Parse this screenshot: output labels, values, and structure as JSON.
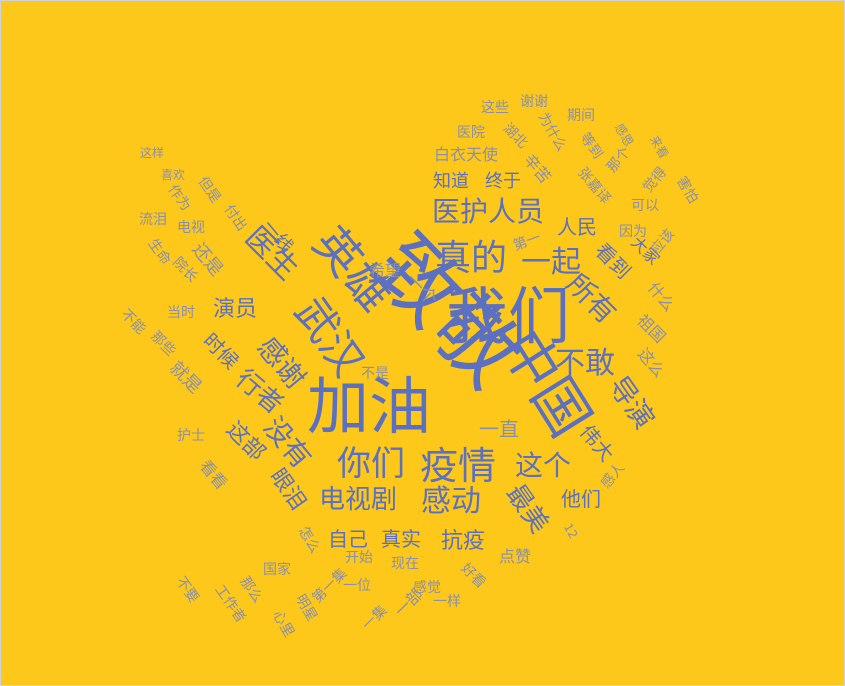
{
  "background_color": "#fec81a",
  "text_colors": {
    "dark": "#5b70c0",
    "light": "#8a8faa"
  },
  "words": [
    {
      "text": "致敬"
    },
    {
      "text": "我们"
    },
    {
      "text": "中国"
    },
    {
      "text": "加油"
    },
    {
      "text": "英雄"
    },
    {
      "text": "武汉"
    },
    {
      "text": "真的"
    },
    {
      "text": "疫情"
    },
    {
      "text": "医生"
    },
    {
      "text": "医护人员"
    },
    {
      "text": "你们"
    },
    {
      "text": "感动"
    },
    {
      "text": "电视剧"
    },
    {
      "text": "一起"
    },
    {
      "text": "所有"
    },
    {
      "text": "不敢"
    },
    {
      "text": "这个"
    },
    {
      "text": "导演"
    },
    {
      "text": "没有"
    },
    {
      "text": "感谢"
    },
    {
      "text": "行者"
    },
    {
      "text": "演员"
    },
    {
      "text": "最美"
    },
    {
      "text": "抗疫"
    },
    {
      "text": "自己"
    },
    {
      "text": "真实"
    },
    {
      "text": "知道"
    },
    {
      "text": "终于"
    },
    {
      "text": "人民"
    },
    {
      "text": "看到"
    },
    {
      "text": "伟大"
    },
    {
      "text": "他们"
    },
    {
      "text": "眼泪"
    },
    {
      "text": "这部"
    },
    {
      "text": "时候"
    },
    {
      "text": "一线"
    },
    {
      "text": "一直"
    },
    {
      "text": "一个"
    },
    {
      "text": "大家"
    },
    {
      "text": "白衣天使"
    },
    {
      "text": "辛苦"
    },
    {
      "text": "张嘉译"
    },
    {
      "text": "希望"
    },
    {
      "text": "还是"
    },
    {
      "text": "什么"
    },
    {
      "text": "祖国"
    },
    {
      "text": "这么"
    },
    {
      "text": "就是"
    },
    {
      "text": "看看"
    },
    {
      "text": "第一"
    },
    {
      "text": "点赞"
    },
    {
      "text": "一部"
    },
    {
      "text": "湖北"
    },
    {
      "text": "这些"
    },
    {
      "text": "谢谢"
    },
    {
      "text": "期间"
    },
    {
      "text": "医院"
    },
    {
      "text": "为什么"
    },
    {
      "text": "等到"
    },
    {
      "text": "那个"
    },
    {
      "text": "感恩"
    },
    {
      "text": "来看"
    },
    {
      "text": "觉得"
    },
    {
      "text": "害怕"
    },
    {
      "text": "可以"
    },
    {
      "text": "因为"
    },
    {
      "text": "应该"
    },
    {
      "text": "这样"
    },
    {
      "text": "喜欢"
    },
    {
      "text": "但是"
    },
    {
      "text": "作为"
    },
    {
      "text": "付出"
    },
    {
      "text": "电视"
    },
    {
      "text": "流泪"
    },
    {
      "text": "生命"
    },
    {
      "text": "院长"
    },
    {
      "text": "当时"
    },
    {
      "text": "不能"
    },
    {
      "text": "那些"
    },
    {
      "text": "不是"
    },
    {
      "text": "护士"
    },
    {
      "text": "国家"
    },
    {
      "text": "怎么"
    },
    {
      "text": "开始"
    },
    {
      "text": "现在"
    },
    {
      "text": "一位"
    },
    {
      "text": "第一集"
    },
    {
      "text": "那么"
    },
    {
      "text": "不要"
    },
    {
      "text": "工作者"
    },
    {
      "text": "明星"
    },
    {
      "text": "心里"
    },
    {
      "text": "一集"
    },
    {
      "text": "感觉"
    },
    {
      "text": "一样"
    },
    {
      "text": "好看"
    },
    {
      "text": "感人"
    },
    {
      "text": "12"
    }
  ]
}
